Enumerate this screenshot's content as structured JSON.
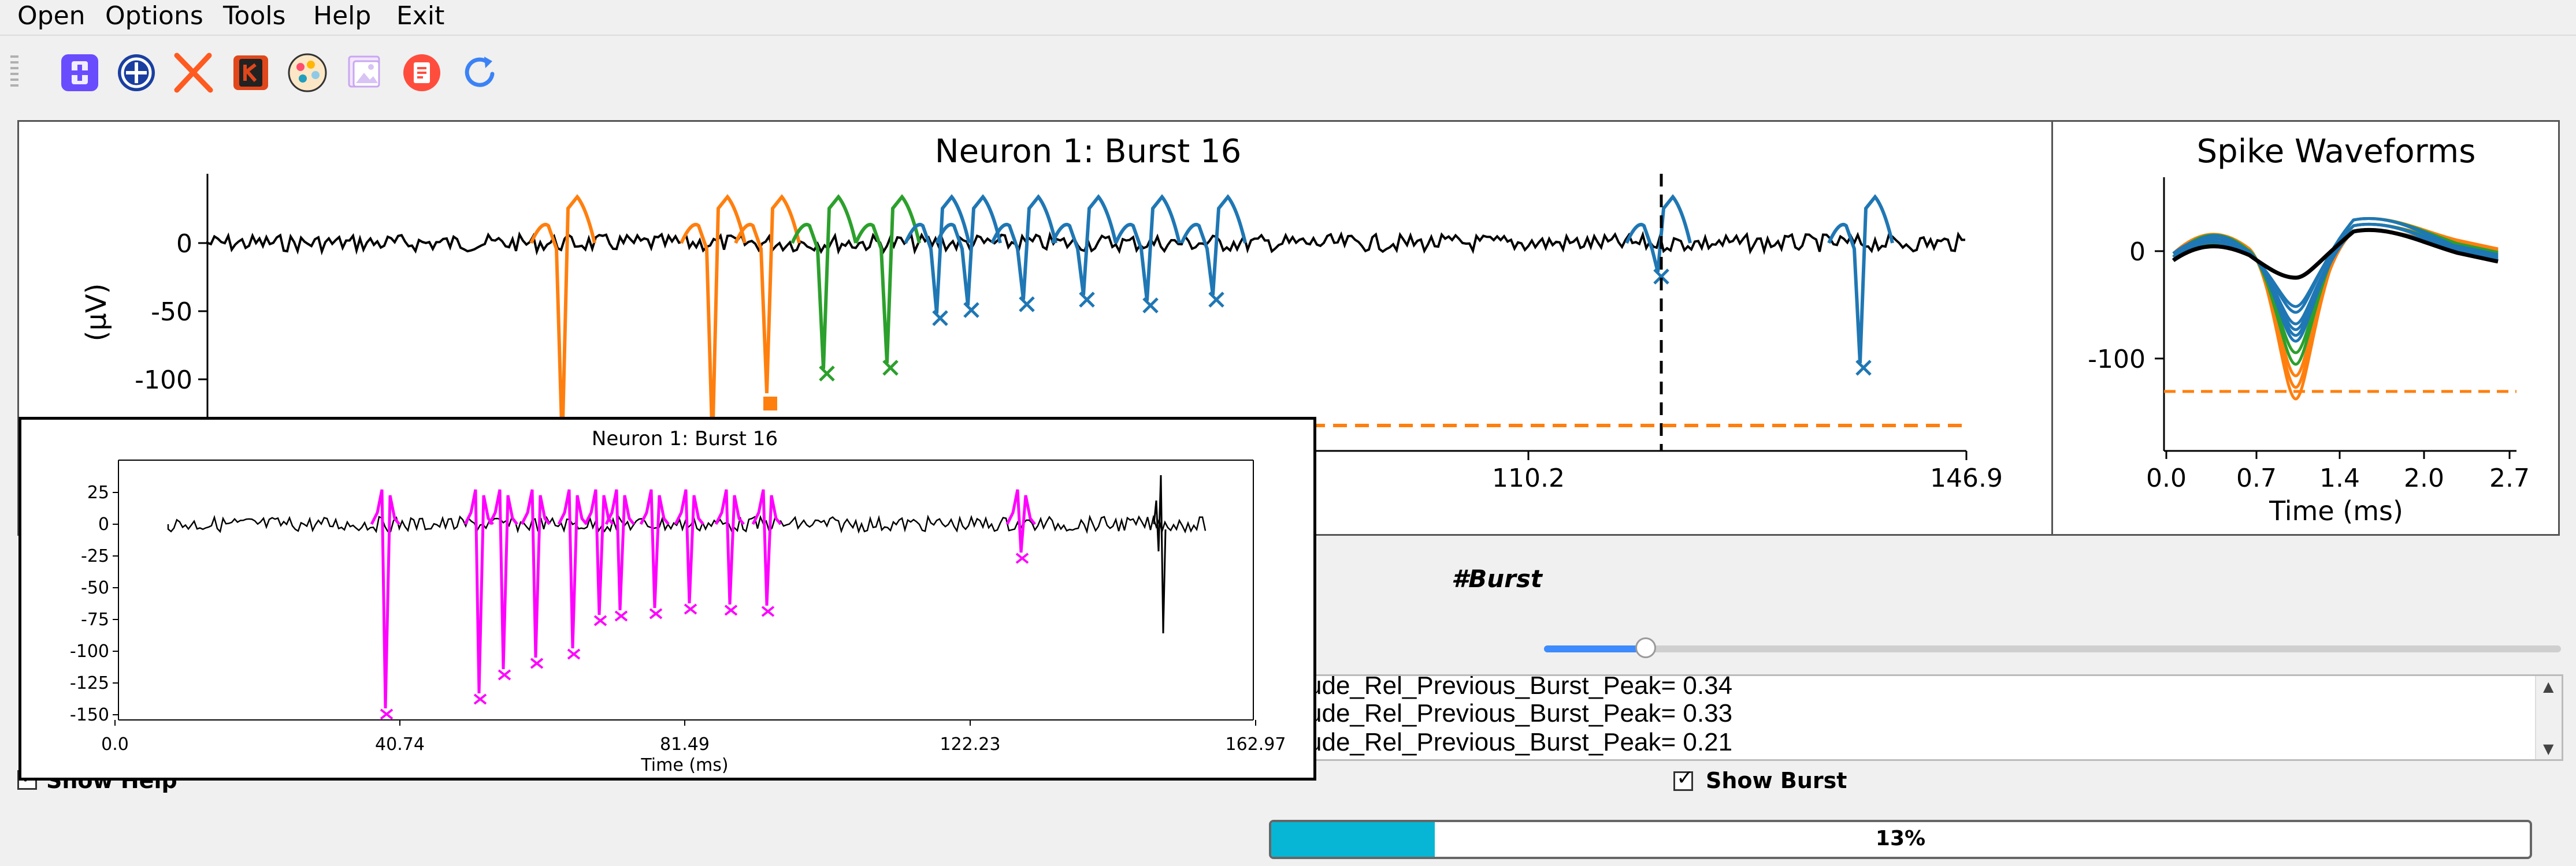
{
  "menu": {
    "items": [
      "Open",
      "Options",
      "Tools",
      "Help",
      "Exit"
    ]
  },
  "toolbar": {
    "icons": [
      "add-icon",
      "target-icon",
      "cross-icon",
      "k-icon",
      "palette-icon",
      "image-icon",
      "note-icon",
      "refresh-icon"
    ]
  },
  "burst_plot": {
    "title": "Neuron 1: Burst 16",
    "ylabel": "(μV)",
    "yticks": [
      "0",
      "-50",
      "-100"
    ],
    "xticks": [
      "110.2",
      "146.9"
    ]
  },
  "waveform_plot": {
    "title": "Spike Waveforms",
    "xlabel": "Time (ms)",
    "yticks": [
      "0",
      "-100"
    ],
    "xticks": [
      "0.0",
      "0.7",
      "1.4",
      "2.0",
      "2.7"
    ]
  },
  "popup_plot": {
    "title": "Neuron 1: Burst 16",
    "xlabel": "Time (ms)",
    "yticks": [
      "25",
      "0",
      "-25",
      "-50",
      "-75",
      "-100",
      "-125",
      "-150"
    ],
    "xticks": [
      "0.0",
      "40.74",
      "81.49",
      "122.23",
      "162.97"
    ]
  },
  "burst_label": "#Burst",
  "slider_value": 0.1,
  "info_lines": [
    "ude_Rel_Previous_Burst_Peak= 0.34",
    "ude_Rel_Previous_Burst_Peak= 0.33",
    "ude_Rel_Previous_Burst_Peak= 0.21"
  ],
  "show_help_label": "Show Help",
  "show_burst_label": "Show Burst",
  "progress": {
    "percent": 13,
    "label": "13%"
  },
  "colors": {
    "orange": "#ff7f0e",
    "green": "#2ca02c",
    "blue": "#1f77b4",
    "magenta": "#ff00ff",
    "progress": "#06b6d4"
  }
}
